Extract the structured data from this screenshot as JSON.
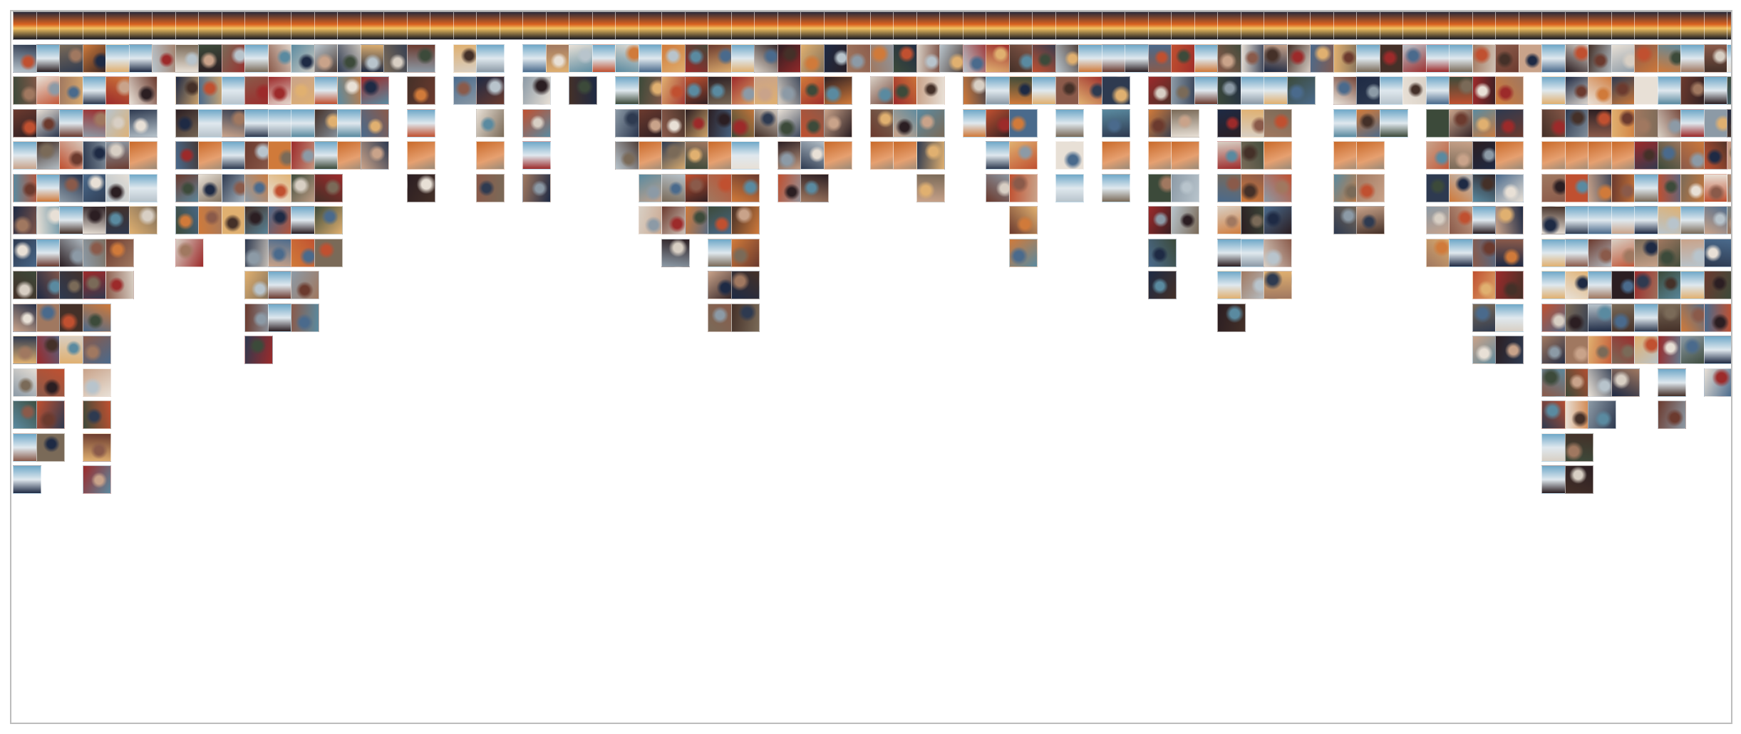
{
  "wall": {
    "column_heights": [
      15,
      14,
      11,
      15,
      9,
      7,
      2,
      8,
      7,
      7,
      11,
      10,
      10,
      8,
      5,
      5,
      2,
      6,
      1,
      3,
      6,
      1,
      6,
      2,
      3,
      2,
      5,
      7,
      8,
      7,
      10,
      10,
      4,
      6,
      6,
      5,
      2,
      5,
      5,
      6,
      2,
      4,
      6,
      8,
      3,
      6,
      3,
      6,
      2,
      9,
      7,
      3,
      10,
      9,
      9,
      3,
      2,
      7,
      7,
      4,
      3,
      8,
      8,
      11,
      11,
      2,
      15,
      15,
      13,
      12,
      11,
      13,
      11,
      12,
      7
    ],
    "palette": [
      "#2b1e22",
      "#8a5a4a",
      "#c9a38a",
      "#4a6a8c",
      "#6b3a2e",
      "#d8cfc4",
      "#3c4a3a",
      "#9c2a2a",
      "#e0b070",
      "#1e2a44",
      "#b8c4cc",
      "#7a6a58",
      "#5a8aa0",
      "#c05030",
      "#e8e0d6",
      "#443028",
      "#a07860",
      "#d07a3a",
      "#2e3a50",
      "#8c9aa6"
    ],
    "accents": [
      "#d9621f",
      "#c96a2a",
      "#6fa8c8",
      "#9a8a78"
    ]
  }
}
